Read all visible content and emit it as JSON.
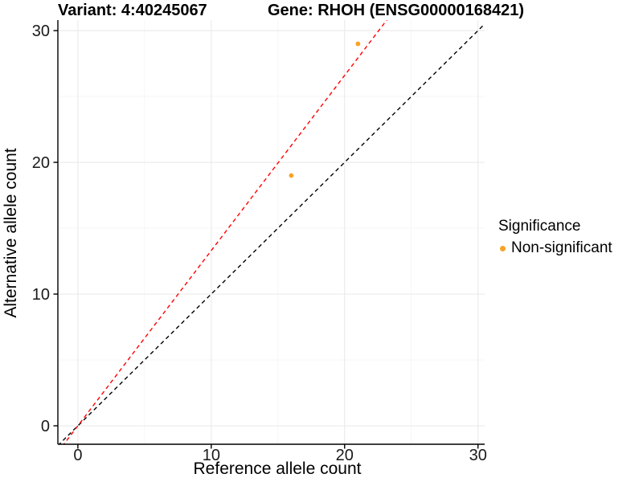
{
  "header": {
    "variant_title": "Variant: 4:40245067",
    "gene_title": "Gene: RHOH (ENSG00000168421)"
  },
  "legend": {
    "title": "Significance",
    "items": [
      {
        "label": "Non-significant",
        "color": "#F9A227"
      }
    ]
  },
  "colors": {
    "point": "#F9A227",
    "identity_line": "#000000",
    "ratio_line": "#FF0000",
    "axis_line": "#000000",
    "tick_text": "#1A1A1A",
    "grid_major": "#EBEBEB",
    "grid_minor": "#F5F5F5",
    "background": "#FFFFFF"
  },
  "chart_data": {
    "type": "scatter",
    "title": "Variant: 4:40245067 — Gene: RHOH (ENSG00000168421)",
    "xlabel": "Reference allele count",
    "ylabel": "Alternative allele count",
    "points": [
      {
        "x": 16,
        "y": 19,
        "series": "Non-significant"
      },
      {
        "x": 21,
        "y": 29,
        "series": "Non-significant"
      }
    ],
    "series": [
      {
        "name": "Non-significant",
        "color": "#F9A227"
      }
    ],
    "x_major_ticks": [
      0,
      10,
      20,
      30
    ],
    "y_major_ticks": [
      0,
      10,
      20,
      30
    ],
    "x_minor_ticks": [
      5,
      15,
      25
    ],
    "y_minor_ticks": [
      5,
      15,
      25
    ],
    "xlim": [
      -1.5,
      30.5
    ],
    "ylim": [
      -1.4,
      30.8
    ],
    "grid": true,
    "legend_position": "right",
    "legend_title": "Significance",
    "reference_lines": [
      {
        "name": "identity-line",
        "slope": 1.0,
        "intercept": 0,
        "color": "#000000",
        "style": "dashed"
      },
      {
        "name": "allelic-ratio-line",
        "slope": 1.33,
        "intercept": 0,
        "color": "#FF0000",
        "style": "dashed"
      }
    ]
  }
}
